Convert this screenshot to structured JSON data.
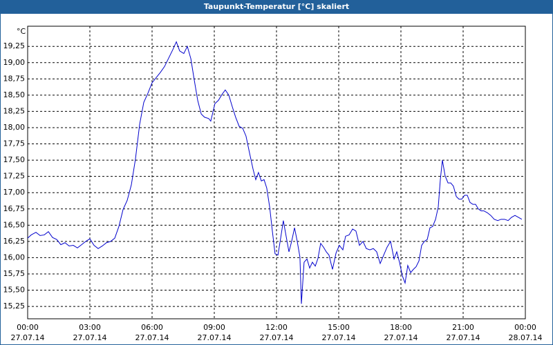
{
  "chart_data": {
    "type": "line",
    "title": "Taupunkt-Temperatur [°C] skaliert",
    "y_unit": "°C",
    "x": [
      0,
      0.17,
      0.4,
      0.6,
      0.8,
      1,
      1.2,
      1.4,
      1.6,
      1.8,
      2,
      2.2,
      2.4,
      2.6,
      2.8,
      3,
      3.2,
      3.4,
      3.6,
      3.8,
      4,
      4.2,
      4.4,
      4.6,
      4.8,
      5,
      5.2,
      5.4,
      5.6,
      5.8,
      6,
      6.2,
      6.4,
      6.6,
      6.8,
      7,
      7.17,
      7.33,
      7.53,
      7.7,
      7.87,
      8.03,
      8.2,
      8.37,
      8.53,
      8.73,
      8.83,
      9.03,
      9.2,
      9.37,
      9.53,
      9.7,
      9.87,
      10.03,
      10.2,
      10.37,
      10.53,
      10.7,
      10.87,
      11,
      11.13,
      11.27,
      11.4,
      11.53,
      11.67,
      11.8,
      11.93,
      12.07,
      12.2,
      12.33,
      12.47,
      12.6,
      12.73,
      12.87,
      13,
      13.13,
      13.2,
      13.33,
      13.47,
      13.6,
      13.73,
      13.87,
      14,
      14.13,
      14.27,
      14.4,
      14.53,
      14.7,
      14.87,
      15.03,
      15.2,
      15.33,
      15.5,
      15.67,
      15.83,
      16,
      16.17,
      16.33,
      16.5,
      16.67,
      16.83,
      17,
      17.17,
      17.33,
      17.5,
      17.67,
      17.8,
      17.93,
      18.07,
      18.2,
      18.33,
      18.47,
      18.6,
      18.73,
      18.87,
      19,
      19.13,
      19.27,
      19.4,
      19.53,
      19.67,
      19.8,
      19.9,
      20,
      20.13,
      20.27,
      20.4,
      20.53,
      20.67,
      20.8,
      20.93,
      21.07,
      21.2,
      21.33,
      21.47,
      21.6,
      21.73,
      21.87,
      22,
      22.17,
      22.33,
      22.5,
      22.67,
      22.83,
      23,
      23.17,
      23.33,
      23.5,
      23.67,
      23.83
    ],
    "series": [
      {
        "name": "Taupunkt-Temperatur",
        "color": "#0000cc",
        "values": [
          16.3,
          16.35,
          16.39,
          16.34,
          16.35,
          16.4,
          16.31,
          16.28,
          16.2,
          16.23,
          16.18,
          16.19,
          16.15,
          16.2,
          16.25,
          16.29,
          16.19,
          16.14,
          16.18,
          16.23,
          16.25,
          16.3,
          16.48,
          16.74,
          16.88,
          17.12,
          17.52,
          18.05,
          18.39,
          18.53,
          18.69,
          18.77,
          18.85,
          18.94,
          19.07,
          19.2,
          19.32,
          19.18,
          19.14,
          19.25,
          19.06,
          18.74,
          18.42,
          18.21,
          18.16,
          18.14,
          18.1,
          18.37,
          18.42,
          18.51,
          18.58,
          18.5,
          18.32,
          18.16,
          18.02,
          17.99,
          17.87,
          17.61,
          17.36,
          17.2,
          17.31,
          17.18,
          17.2,
          17.07,
          16.78,
          16.41,
          16.06,
          16.04,
          16.3,
          16.57,
          16.32,
          16.09,
          16.25,
          16.46,
          16.25,
          16.01,
          15.29,
          15.93,
          15.98,
          15.84,
          15.93,
          15.87,
          15.99,
          16.22,
          16.16,
          16.09,
          16.04,
          15.82,
          16.07,
          16.19,
          16.12,
          16.33,
          16.35,
          16.44,
          16.41,
          16.19,
          16.25,
          16.14,
          16.12,
          16.14,
          16.09,
          15.91,
          16.04,
          16.16,
          16.25,
          15.98,
          16.09,
          15.93,
          15.72,
          15.61,
          15.88,
          15.77,
          15.82,
          15.86,
          15.95,
          16.19,
          16.25,
          16.28,
          16.46,
          16.48,
          16.59,
          16.78,
          17.2,
          17.5,
          17.26,
          17.15,
          17.15,
          17.1,
          16.94,
          16.9,
          16.9,
          16.96,
          16.96,
          16.85,
          16.82,
          16.82,
          16.75,
          16.72,
          16.72,
          16.69,
          16.65,
          16.59,
          16.57,
          16.59,
          16.59,
          16.57,
          16.62,
          16.65,
          16.62,
          16.59
        ]
      }
    ],
    "xlim": [
      0,
      24
    ],
    "xticks": [
      {
        "value": 0,
        "label": "00:00"
      },
      {
        "value": 3,
        "label": "03:00"
      },
      {
        "value": 6,
        "label": "06:00"
      },
      {
        "value": 9,
        "label": "09:00"
      },
      {
        "value": 12,
        "label": "12:00"
      },
      {
        "value": 15,
        "label": "15:00"
      },
      {
        "value": 18,
        "label": "18:00"
      },
      {
        "value": 21,
        "label": "21:00"
      },
      {
        "value": 24,
        "label": "00:00"
      }
    ],
    "xtick_dates": [
      "27.07.14",
      "27.07.14",
      "27.07.14",
      "27.07.14",
      "27.07.14",
      "27.07.14",
      "27.07.14",
      "27.07.14",
      "28.07.14"
    ],
    "ylim": [
      15.06,
      19.56
    ],
    "yticks": [
      {
        "value": 15.25,
        "label": "15,25"
      },
      {
        "value": 15.5,
        "label": "15,50"
      },
      {
        "value": 15.75,
        "label": "15,75"
      },
      {
        "value": 16,
        "label": "16,00"
      },
      {
        "value": 16.25,
        "label": "16,25"
      },
      {
        "value": 16.5,
        "label": "16,50"
      },
      {
        "value": 16.75,
        "label": "16,75"
      },
      {
        "value": 17,
        "label": "17,00"
      },
      {
        "value": 17.25,
        "label": "17,25"
      },
      {
        "value": 17.5,
        "label": "17,50"
      },
      {
        "value": 17.75,
        "label": "17,75"
      },
      {
        "value": 18,
        "label": "18,00"
      },
      {
        "value": 18.25,
        "label": "18,25"
      },
      {
        "value": 18.5,
        "label": "18,50"
      },
      {
        "value": 18.75,
        "label": "18,75"
      },
      {
        "value": 19,
        "label": "19,00"
      },
      {
        "value": 19.25,
        "label": "19,25"
      }
    ],
    "grid": true
  }
}
